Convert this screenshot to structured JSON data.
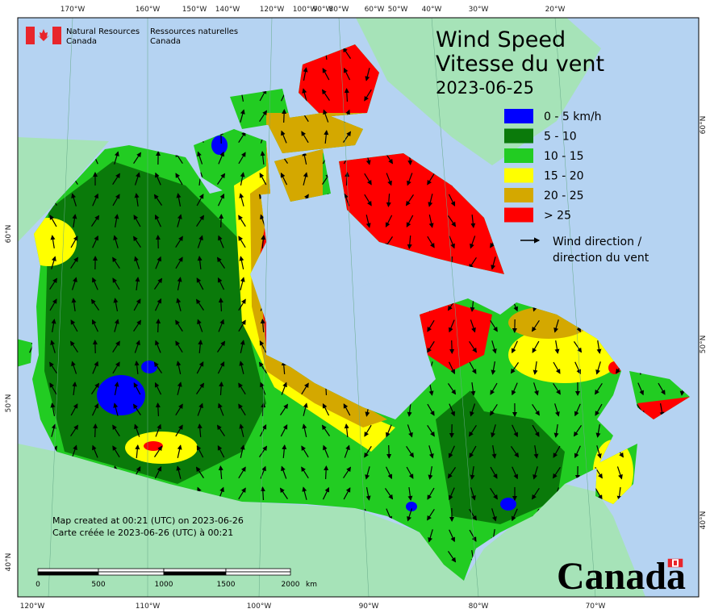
{
  "header": {
    "agency_en": "Natural Resources",
    "agency_en_2": "Canada",
    "agency_fr": "Ressources naturelles",
    "agency_fr_2": "Canada"
  },
  "title": {
    "en": "Wind Speed",
    "fr": "Vitesse du vent",
    "date": "2023-06-25"
  },
  "legend": {
    "items": [
      {
        "label": "0 - 5 km/h",
        "color": "#0000ff"
      },
      {
        "label": "5 - 10",
        "color": "#0a7a0a"
      },
      {
        "label": "10 - 15",
        "color": "#22cc22"
      },
      {
        "label": "15 - 20",
        "color": "#ffff00"
      },
      {
        "label": "20 - 25",
        "color": "#d4a800"
      },
      {
        "label": "> 25",
        "color": "#ff0000"
      }
    ],
    "arrow_label_en": "Wind direction /",
    "arrow_label_fr": "direction du vent"
  },
  "notes": [
    "Map created at 00:21 (UTC) on 2023-06-26",
    "Carte créée le 2023-06-26 (UTC) à 00:21"
  ],
  "scale_bar": {
    "labels": [
      "0",
      "500",
      "1000",
      "1500",
      "2000"
    ],
    "unit": "km"
  },
  "graticule": {
    "top": [
      "170°W",
      "160°W",
      "150°W",
      "140°W",
      "120°W",
      "100°W",
      "90°W",
      "80°W",
      "60°W",
      "50°W",
      "40°W",
      "30°W",
      "20°W"
    ],
    "bottom": [
      "120°W",
      "110°W",
      "100°W",
      "90°W",
      "80°W",
      "70°W"
    ],
    "left": [
      "60°N",
      "50°N",
      "40°N"
    ],
    "right": [
      "60°N",
      "50°N",
      "40°N"
    ]
  },
  "wordmark": "Canada"
}
